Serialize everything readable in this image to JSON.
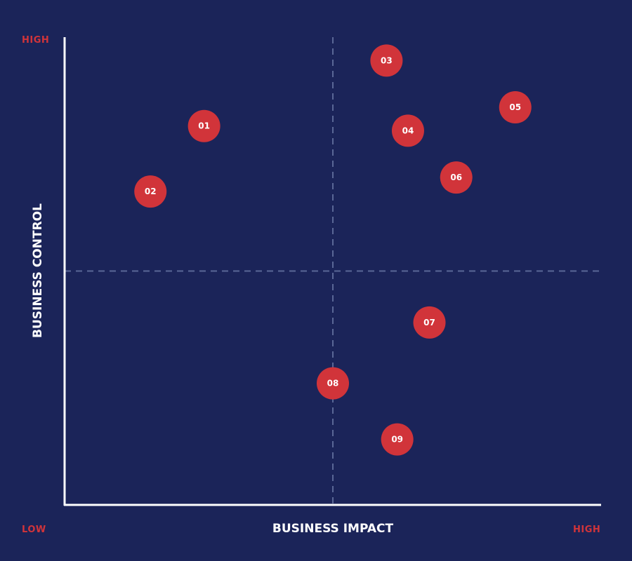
{
  "colors": {
    "background": "#1b2459",
    "axis": "#ffffff",
    "divider": "#5a6796",
    "point_fill": "#d1343a",
    "point_text": "#ffffff",
    "corner_label": "#d1343a"
  },
  "chart_data": {
    "type": "scatter",
    "title": "",
    "xlabel": "BUSINESS IMPACT",
    "ylabel": "BUSINESS CONTROL",
    "x_low_label": "LOW",
    "x_high_label": "HIGH",
    "y_high_label": "HIGH",
    "xlim": [
      0,
      100
    ],
    "ylim": [
      0,
      100
    ],
    "divider_x": 50,
    "divider_y": 50,
    "grid": false,
    "points": [
      {
        "label": "01",
        "x": 26,
        "y": 81
      },
      {
        "label": "02",
        "x": 16,
        "y": 67
      },
      {
        "label": "03",
        "x": 60,
        "y": 95
      },
      {
        "label": "04",
        "x": 64,
        "y": 80
      },
      {
        "label": "05",
        "x": 84,
        "y": 85
      },
      {
        "label": "06",
        "x": 73,
        "y": 70
      },
      {
        "label": "07",
        "x": 68,
        "y": 39
      },
      {
        "label": "08",
        "x": 50,
        "y": 26
      },
      {
        "label": "09",
        "x": 62,
        "y": 14
      }
    ]
  }
}
